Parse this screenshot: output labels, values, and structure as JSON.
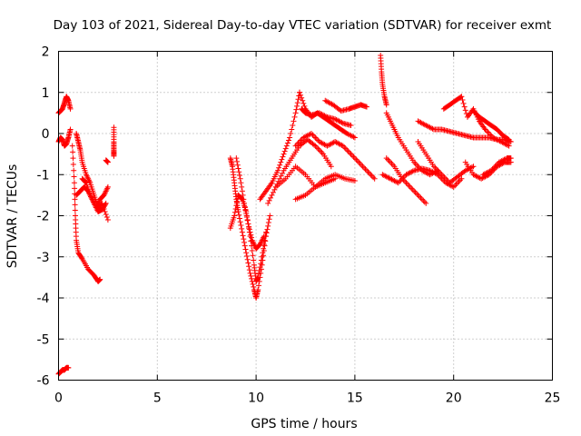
{
  "chart_data": {
    "type": "scatter",
    "title": "Day 103 of 2021, Sidereal Day-to-day VTEC variation (SDTVAR) for receiver exmt",
    "xlabel": "GPS time / hours",
    "ylabel": "SDTVAR / TECUs",
    "xlim": [
      0,
      25
    ],
    "ylim": [
      -6,
      2
    ],
    "xticks": [
      0,
      5,
      10,
      15,
      20,
      25
    ],
    "yticks": [
      -6,
      -5,
      -4,
      -3,
      -2,
      -1,
      0,
      1,
      2
    ],
    "grid": true,
    "marker": "plus",
    "marker_color": "#ff0000",
    "traces": [
      {
        "x": [
          0.0,
          0.1,
          0.2,
          0.3,
          0.4,
          0.5
        ],
        "y": [
          -5.85,
          -5.8,
          -5.75,
          -5.75,
          -5.7,
          -5.7
        ]
      },
      {
        "x": [
          0.0,
          0.1,
          0.2,
          0.3,
          0.4,
          0.5,
          0.6
        ],
        "y": [
          0.5,
          0.55,
          0.6,
          0.75,
          0.9,
          0.8,
          0.6
        ]
      },
      {
        "x": [
          0.0,
          0.1,
          0.2,
          0.3,
          0.4,
          0.5,
          0.6
        ],
        "y": [
          -0.2,
          -0.1,
          -0.15,
          -0.3,
          -0.25,
          -0.1,
          0.1
        ]
      },
      {
        "x": [
          0.7,
          0.8,
          0.85,
          0.9,
          1.0,
          1.2,
          1.5,
          1.8,
          2.0,
          2.1
        ],
        "y": [
          -0.3,
          -1.2,
          -2.0,
          -2.6,
          -2.9,
          -3.05,
          -3.3,
          -3.45,
          -3.6,
          -3.55
        ]
      },
      {
        "x": [
          0.9,
          1.0,
          1.1,
          1.2,
          1.4,
          1.6,
          1.8,
          2.0,
          2.2,
          2.5
        ],
        "y": [
          0.0,
          -0.2,
          -0.4,
          -0.7,
          -1.0,
          -1.2,
          -1.5,
          -1.8,
          -1.7,
          -2.1
        ]
      },
      {
        "x": [
          0.9,
          1.1,
          1.3,
          1.5,
          1.7,
          1.9,
          2.1,
          2.3,
          2.5
        ],
        "y": [
          -1.5,
          -1.4,
          -1.3,
          -1.4,
          -1.6,
          -1.8,
          -1.6,
          -1.5,
          -1.3
        ]
      },
      {
        "x": [
          1.2,
          1.4,
          1.6,
          1.8,
          2.0,
          2.2,
          2.4
        ],
        "y": [
          -1.1,
          -1.2,
          -1.5,
          -1.7,
          -1.9,
          -1.85,
          -1.7
        ]
      },
      {
        "x": [
          2.4,
          2.5
        ],
        "y": [
          -0.65,
          -0.7
        ]
      },
      {
        "x": [
          2.8,
          2.8,
          2.8,
          2.8
        ],
        "y": [
          0.15,
          -0.2,
          -0.4,
          -0.55
        ]
      },
      {
        "x": [
          8.7,
          8.8,
          8.9,
          9.0,
          9.1,
          9.3,
          9.5,
          9.7,
          9.9,
          10.0,
          10.1,
          10.3,
          10.5,
          10.7
        ],
        "y": [
          -0.6,
          -0.8,
          -1.2,
          -1.6,
          -1.9,
          -2.4,
          -2.9,
          -3.4,
          -3.8,
          -4.0,
          -3.8,
          -3.2,
          -2.5,
          -2.0
        ]
      },
      {
        "x": [
          8.7,
          8.9,
          9.1,
          9.3,
          9.5,
          9.7,
          9.9,
          10.0,
          10.1,
          10.3,
          10.5
        ],
        "y": [
          -2.3,
          -2.0,
          -1.5,
          -1.6,
          -1.9,
          -2.5,
          -3.2,
          -3.6,
          -3.5,
          -3.0,
          -2.4
        ]
      },
      {
        "x": [
          9.0,
          9.2,
          9.4,
          9.6,
          9.8,
          10.0,
          10.2,
          10.4
        ],
        "y": [
          -0.6,
          -1.1,
          -1.7,
          -2.2,
          -2.6,
          -2.8,
          -2.7,
          -2.5
        ]
      },
      {
        "x": [
          10.2,
          10.5,
          10.8,
          11.1,
          11.4,
          11.7,
          12.0,
          12.2
        ],
        "y": [
          -1.6,
          -1.4,
          -1.2,
          -0.9,
          -0.5,
          -0.1,
          0.5,
          1.0
        ]
      },
      {
        "x": [
          12.2,
          12.5,
          12.8,
          13.1,
          13.4,
          13.7,
          14.0,
          14.3,
          14.6,
          15.0
        ],
        "y": [
          1.0,
          0.6,
          0.4,
          0.5,
          0.4,
          0.3,
          0.2,
          0.1,
          0.0,
          -0.1
        ]
      },
      {
        "x": [
          12.3,
          12.5,
          12.8,
          13.2,
          13.6,
          14.0,
          14.4,
          14.8
        ],
        "y": [
          0.6,
          0.5,
          0.45,
          0.5,
          0.4,
          0.35,
          0.25,
          0.2
        ]
      },
      {
        "x": [
          13.5,
          13.9,
          14.3,
          14.7,
          15.0,
          15.3,
          15.6
        ],
        "y": [
          0.8,
          0.7,
          0.55,
          0.6,
          0.65,
          0.7,
          0.65
        ]
      },
      {
        "x": [
          10.6,
          11.0,
          11.4,
          11.8,
          12.2,
          12.6,
          13.0,
          13.4,
          13.8
        ],
        "y": [
          -1.7,
          -1.3,
          -0.9,
          -0.6,
          -0.3,
          -0.15,
          -0.3,
          -0.5,
          -0.8
        ]
      },
      {
        "x": [
          12.0,
          12.4,
          12.8,
          13.2,
          13.6,
          14.0,
          14.4,
          14.8,
          15.2,
          15.6,
          16.0
        ],
        "y": [
          -0.3,
          -0.1,
          0.0,
          -0.2,
          -0.3,
          -0.2,
          -0.3,
          -0.5,
          -0.7,
          -0.9,
          -1.1
        ]
      },
      {
        "x": [
          11.0,
          11.5,
          12.0,
          12.5,
          13.0,
          13.5,
          14.0,
          14.5,
          15.0
        ],
        "y": [
          -1.3,
          -1.1,
          -0.8,
          -1.0,
          -1.3,
          -1.1,
          -1.0,
          -1.1,
          -1.15
        ]
      },
      {
        "x": [
          12.0,
          12.5,
          13.0,
          13.5,
          14.0
        ],
        "y": [
          -1.6,
          -1.5,
          -1.3,
          -1.2,
          -1.1
        ]
      },
      {
        "x": [
          16.3,
          16.35,
          16.4,
          16.5,
          16.6
        ],
        "y": [
          1.9,
          1.5,
          1.2,
          0.9,
          0.7
        ]
      },
      {
        "x": [
          16.6,
          16.9,
          17.2,
          17.6,
          18.0,
          18.4,
          18.8,
          19.2
        ],
        "y": [
          0.5,
          0.2,
          -0.1,
          -0.4,
          -0.7,
          -0.9,
          -1.0,
          -0.9
        ]
      },
      {
        "x": [
          16.4,
          16.8,
          17.2,
          17.6,
          18.0,
          18.4,
          18.8,
          19.2,
          19.6,
          20.0,
          20.4
        ],
        "y": [
          -1.0,
          -1.1,
          -1.2,
          -1.0,
          -0.9,
          -0.85,
          -0.9,
          -1.0,
          -1.2,
          -1.3,
          -1.1
        ]
      },
      {
        "x": [
          16.6,
          17.0,
          17.4,
          17.8,
          18.2,
          18.6
        ],
        "y": [
          -0.6,
          -0.8,
          -1.1,
          -1.3,
          -1.5,
          -1.7
        ]
      },
      {
        "x": [
          18.2,
          18.6,
          19.0,
          19.4,
          19.8,
          20.2,
          20.6,
          21.0
        ],
        "y": [
          -0.2,
          -0.5,
          -0.8,
          -1.0,
          -1.2,
          -1.05,
          -0.9,
          -0.8
        ]
      },
      {
        "x": [
          18.2,
          18.6,
          19.0,
          19.4,
          19.8,
          20.2,
          20.6,
          21.0,
          21.4,
          21.8,
          22.2,
          22.6,
          22.9
        ],
        "y": [
          0.3,
          0.2,
          0.1,
          0.1,
          0.05,
          0.0,
          -0.05,
          -0.1,
          -0.1,
          -0.1,
          -0.15,
          -0.15,
          -0.2
        ]
      },
      {
        "x": [
          19.5,
          19.8,
          20.1,
          20.4,
          20.7,
          21.0,
          21.3,
          21.6,
          22.0,
          22.4,
          22.8
        ],
        "y": [
          0.6,
          0.7,
          0.8,
          0.9,
          0.4,
          0.6,
          0.3,
          0.1,
          -0.1,
          -0.2,
          -0.3
        ]
      },
      {
        "x": [
          21.0,
          21.3,
          21.6,
          21.9,
          22.2,
          22.5,
          22.8
        ],
        "y": [
          0.55,
          0.4,
          0.3,
          0.2,
          0.1,
          -0.05,
          -0.15
        ]
      },
      {
        "x": [
          20.6,
          21.0,
          21.4,
          21.8,
          22.2,
          22.6,
          22.9
        ],
        "y": [
          -0.7,
          -1.0,
          -1.1,
          -1.0,
          -0.8,
          -0.7,
          -0.7
        ]
      },
      {
        "x": [
          21.5,
          21.9,
          22.3,
          22.7,
          22.9
        ],
        "y": [
          -1.0,
          -0.9,
          -0.7,
          -0.6,
          -0.6
        ]
      }
    ]
  }
}
